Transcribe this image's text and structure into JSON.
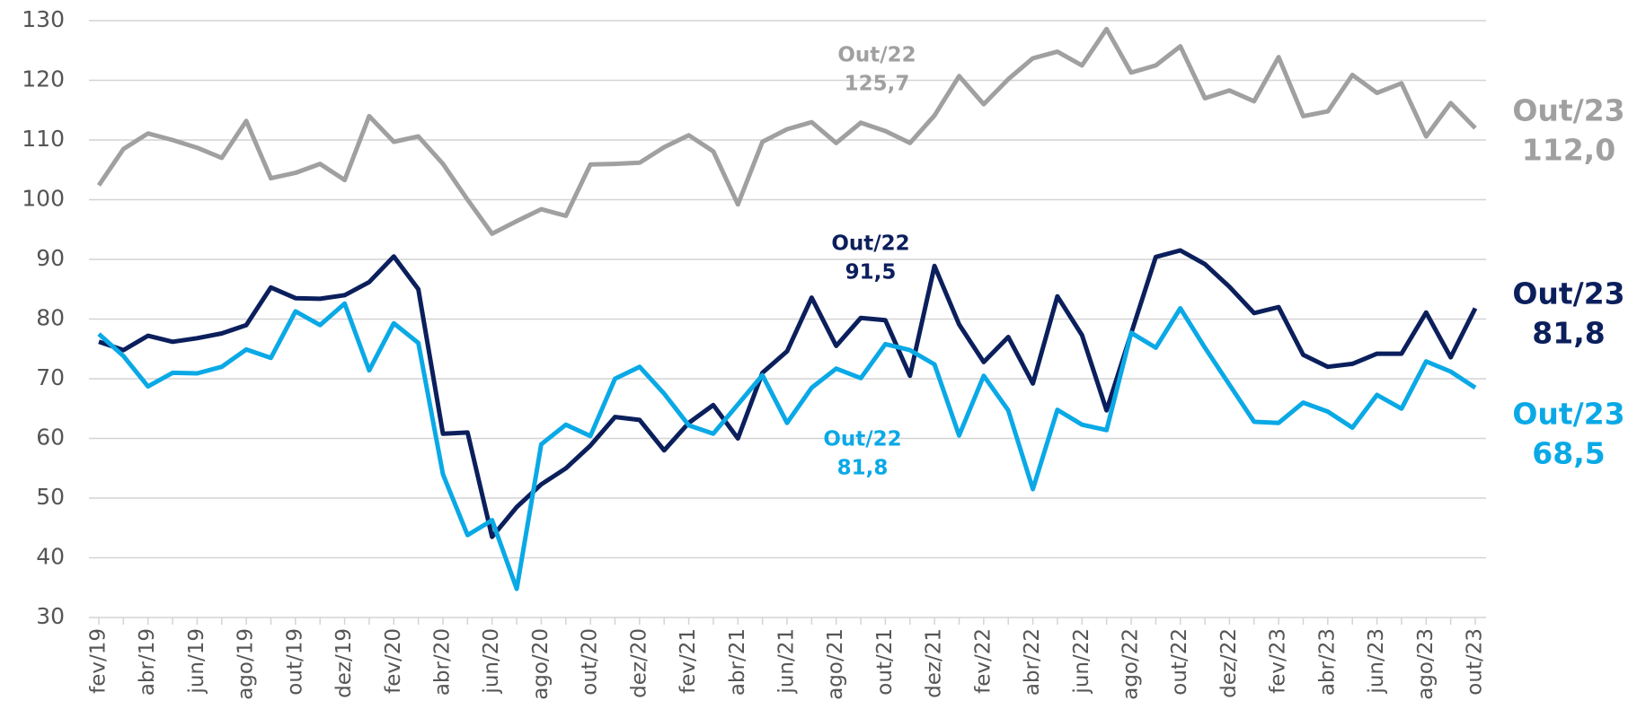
{
  "chart_data": {
    "type": "line",
    "categories": [
      "fev/19",
      null,
      "abr/19",
      null,
      "jun/19",
      null,
      "ago/19",
      null,
      "out/19",
      null,
      "dez/19",
      null,
      "fev/20",
      null,
      "abr/20",
      null,
      "jun/20",
      null,
      "ago/20",
      null,
      "out/20",
      null,
      "dez/20",
      null,
      "fev/21",
      null,
      "abr/21",
      null,
      "jun/21",
      null,
      "ago/21",
      null,
      "out/21",
      null,
      "dez/21",
      null,
      "fev/22",
      null,
      "abr/22",
      null,
      "jun/22",
      null,
      "ago/22",
      null,
      "out/22",
      null,
      "dez/22",
      null,
      "fev/23",
      null,
      "abr/23",
      null,
      "jun/23",
      null,
      "ago/23",
      null,
      "out/23"
    ],
    "series": [
      {
        "color": "#a0a0a0",
        "annotation": [
          "Out/22",
          "125,7"
        ],
        "end_label": [
          "Out/23",
          "112,0"
        ],
        "values": [
          102.4,
          108.5,
          111.1,
          110,
          108.7,
          107,
          113.2,
          103.6,
          104.5,
          106,
          103.3,
          114,
          109.7,
          110.6,
          106,
          100,
          94.3,
          96.4,
          98.4,
          97.3,
          105.9,
          106,
          106.2,
          108.8,
          110.8,
          108.1,
          99.2,
          109.7,
          111.8,
          113,
          109.5,
          112.9,
          111.5,
          109.5,
          114.1,
          120.7,
          116,
          120.2,
          123.7,
          124.8,
          122.5,
          128.6,
          121.3,
          122.5,
          125.7,
          117,
          118.3,
          116.5,
          123.9,
          114,
          114.8,
          120.9,
          117.9,
          119.5,
          110.6,
          116.2,
          112.0
        ]
      },
      {
        "color": "#0b1f5c",
        "annotation": [
          "Out/22",
          "91,5"
        ],
        "end_label": [
          "Out/23",
          "81,8"
        ],
        "values": [
          76.2,
          74.8,
          77.2,
          76.2,
          76.8,
          77.6,
          79,
          85.3,
          83.5,
          83.4,
          84,
          86.2,
          90.5,
          85,
          60.8,
          61,
          43.5,
          48.5,
          52.3,
          55,
          58.8,
          63.6,
          63.1,
          58,
          62.6,
          65.6,
          60,
          71,
          74.6,
          83.6,
          75.5,
          80.2,
          79.8,
          70.5,
          88.9,
          79.1,
          72.8,
          77,
          69.2,
          83.8,
          77.3,
          64.7,
          77.6,
          90.4,
          91.5,
          89.2,
          85.4,
          81,
          82,
          74,
          72,
          72.5,
          74.2,
          74.2,
          81.1,
          73.6,
          81.8
        ]
      },
      {
        "color": "#0aa9e6",
        "annotation": [
          "Out/22",
          "81,8"
        ],
        "end_label": [
          "Out/23",
          "68,5"
        ],
        "values": [
          77.5,
          73.8,
          68.7,
          71,
          70.9,
          72,
          74.9,
          73.5,
          81.3,
          79,
          82.6,
          71.4,
          79.3,
          76,
          54,
          43.8,
          46.3,
          34.8,
          59,
          62.3,
          60.4,
          70,
          72,
          67.5,
          62.2,
          60.8,
          65.7,
          70.6,
          62.6,
          68.5,
          71.7,
          70.1,
          75.8,
          74.8,
          72.4,
          60.5,
          70.5,
          64.7,
          51.5,
          64.8,
          62.3,
          61.4,
          77.7,
          75.2,
          81.8,
          75.2,
          69,
          62.8,
          62.6,
          66,
          64.5,
          61.8,
          67.3,
          65,
          72.9,
          71.2,
          68.5
        ]
      }
    ],
    "ylim": [
      30,
      130
    ],
    "yticks": [
      30,
      40,
      50,
      60,
      70,
      80,
      90,
      100,
      110,
      120,
      130
    ],
    "grid": true
  }
}
